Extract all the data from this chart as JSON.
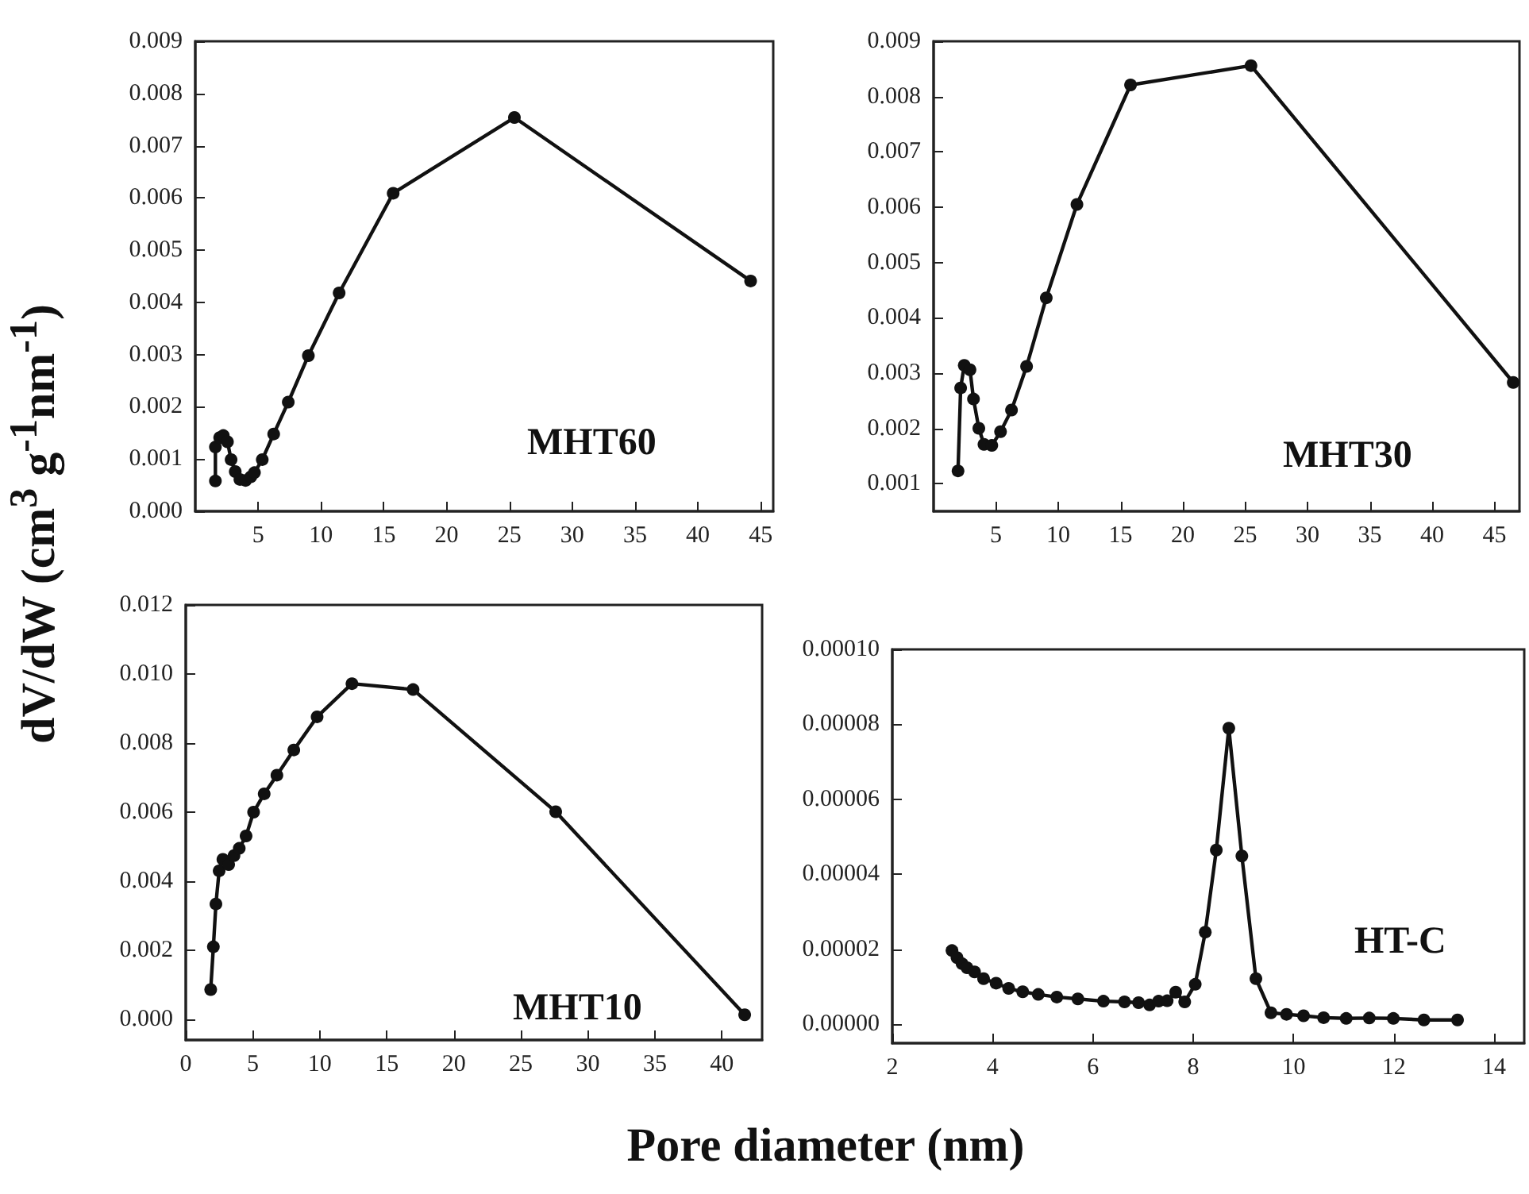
{
  "chart_data": [
    {
      "type": "line",
      "title": "MHT60",
      "ylabel": "dV/dW (cm$^{3}$ g$^{-1}$nm$^{-1}$)",
      "marker": "circle",
      "line_style": "solid",
      "color": "#111111",
      "x": [
        1.6,
        1.6,
        1.94,
        2.23,
        2.56,
        2.85,
        3.18,
        3.55,
        4.0,
        4.42,
        4.71,
        5.33,
        6.24,
        7.4,
        9.0,
        11.45,
        15.75,
        25.4,
        44.2
      ],
      "values": [
        0.00058,
        0.00123,
        0.00141,
        0.00145,
        0.00133,
        0.00099,
        0.00076,
        0.00061,
        0.00059,
        0.00066,
        0.00074,
        0.00099,
        0.00148,
        0.00209,
        0.00298,
        0.00418,
        0.00609,
        0.00754,
        0.00441
      ],
      "xlim": [
        0,
        46
      ],
      "xticks": [
        5,
        10,
        15,
        20,
        25,
        30,
        35,
        40,
        45
      ],
      "ylim": [
        0,
        0.009
      ],
      "yticks": [
        {
          "value": 0,
          "label": "0.000"
        },
        0.001,
        0.002,
        0.003,
        0.004,
        0.005,
        0.006,
        0.007,
        0.008,
        0.009
      ]
    },
    {
      "type": "line",
      "title": "MHT30",
      "marker": "circle",
      "line_style": "solid",
      "color": "#111111",
      "x": [
        1.96,
        2.17,
        2.46,
        2.92,
        3.2,
        3.63,
        4.04,
        4.67,
        5.37,
        6.25,
        7.46,
        9.04,
        11.5,
        15.8,
        25.46,
        46.5
      ],
      "values": [
        0.00123,
        0.00273,
        0.00314,
        0.00306,
        0.00253,
        0.002,
        0.00171,
        0.00169,
        0.00194,
        0.00233,
        0.00312,
        0.00436,
        0.00605,
        0.00821,
        0.00856,
        0.00283
      ],
      "xlim": [
        0,
        47
      ],
      "xticks": [
        5,
        10,
        15,
        20,
        25,
        30,
        35,
        40,
        45
      ],
      "ylim": [
        0.0005,
        0.009
      ],
      "yticks": [
        0.001,
        0.002,
        0.003,
        0.004,
        0.005,
        0.006,
        0.007,
        0.008,
        0.009
      ]
    },
    {
      "type": "line",
      "title": "MHT10",
      "xlabel": "Pore diameter (nm)",
      "marker": "circle",
      "line_style": "solid",
      "color": "#111111",
      "x": [
        1.86,
        2.06,
        2.25,
        2.49,
        2.77,
        3.2,
        3.6,
        3.99,
        4.5,
        5.06,
        5.85,
        6.8,
        8.06,
        9.8,
        12.4,
        16.96,
        27.6,
        41.7
      ],
      "values": [
        0.00086,
        0.0021,
        0.00334,
        0.0043,
        0.00463,
        0.00448,
        0.00474,
        0.00495,
        0.00531,
        0.006,
        0.00653,
        0.00707,
        0.0078,
        0.00876,
        0.00972,
        0.00955,
        0.00601,
        0.00013
      ],
      "xlim": [
        0,
        43
      ],
      "xticks": [
        0,
        5,
        10,
        15,
        20,
        25,
        30,
        35,
        40
      ],
      "ylim": [
        -0.0006,
        0.012
      ],
      "yticks": [
        {
          "value": 0,
          "label": "0.000"
        },
        0.002,
        0.004,
        0.006,
        0.008,
        {
          "value": 0.01,
          "label": "0.010"
        },
        0.012
      ]
    },
    {
      "type": "line",
      "title": "HT-C",
      "marker": "circle",
      "line_style": "solid",
      "color": "#111111",
      "x": [
        3.19,
        3.29,
        3.39,
        3.49,
        3.64,
        3.82,
        4.07,
        4.32,
        4.6,
        4.91,
        5.28,
        5.7,
        6.21,
        6.63,
        6.91,
        7.13,
        7.31,
        7.48,
        7.65,
        7.83,
        8.04,
        8.24,
        8.46,
        8.71,
        8.97,
        9.25,
        9.55,
        9.86,
        10.2,
        10.6,
        11.05,
        11.51,
        11.99,
        12.6,
        13.27
      ],
      "values": [
        1.97e-05,
        1.78e-05,
        1.62e-05,
        1.51e-05,
        1.4e-05,
        1.22e-05,
        1.1e-05,
        9.6e-06,
        8.7e-06,
        8e-06,
        7.3e-06,
        6.8e-06,
        6.2e-06,
        6e-06,
        5.8e-06,
        5.2e-06,
        6.2e-06,
        6.3e-06,
        8.6e-06,
        6e-06,
        1.07e-05,
        2.46e-05,
        4.65e-05,
        7.9e-05,
        4.49e-05,
        1.22e-05,
        3.1e-06,
        2.7e-06,
        2.3e-06,
        1.8e-06,
        1.6e-06,
        1.7e-06,
        1.6e-06,
        1.2e-06,
        1.2e-06
      ],
      "xlim": [
        2,
        14.6
      ],
      "xticks": [
        2,
        4,
        6,
        8,
        10,
        12,
        14
      ],
      "ylim": [
        -5e-06,
        0.0001
      ],
      "yticks": [
        {
          "value": 0,
          "label": "0.00000"
        },
        {
          "value": 2e-05,
          "label": "0.00002"
        },
        {
          "value": 4e-05,
          "label": "0.00004"
        },
        {
          "value": 6e-05,
          "label": "0.00006"
        },
        {
          "value": 8e-05,
          "label": "0.00008"
        },
        {
          "value": 0.0001,
          "label": "0.00010"
        }
      ]
    }
  ]
}
